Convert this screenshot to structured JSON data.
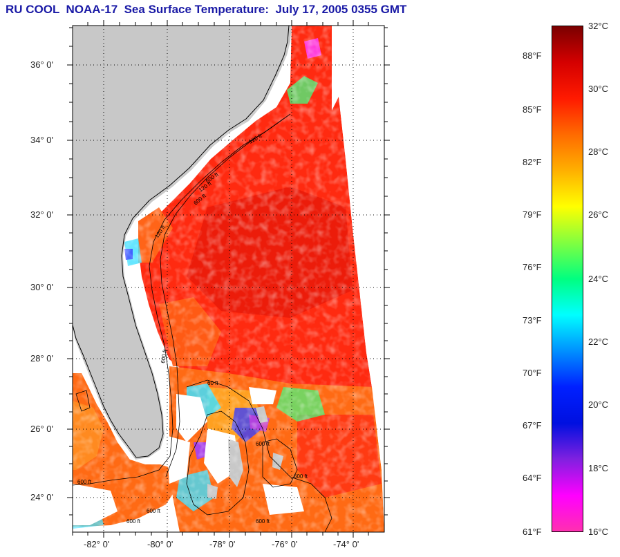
{
  "title": "RU COOL  NOAA-17  Sea Surface Temperature:  July 17, 2005 0355 GMT",
  "map": {
    "lat_labels": [
      "36° 0'",
      "34° 0'",
      "32° 0'",
      "30° 0'",
      "28° 0'",
      "26° 0'",
      "24° 0'"
    ],
    "lon_labels": [
      "-82° 0'",
      "-80° 0'",
      "-78° 0'",
      "-76° 0'",
      "-74° 0'"
    ],
    "isobath_labels": [
      "120 ft",
      "600 ft",
      "120 ft",
      "600 ft",
      "120 ft",
      "600 ft",
      "60 ft",
      "600 ft",
      "600 ft",
      "600 ft",
      "600 ft",
      "600 ft",
      "600 ft"
    ],
    "colors": {
      "land": "#c8c8c8",
      "ocean_warm": "#ff2a10",
      "ocean_hot": "#e81808",
      "ocean_mid": "#ff7a10",
      "cloud": "#ffffff"
    }
  },
  "colorbar": {
    "celsius_labels": [
      "32°C",
      "30°C",
      "28°C",
      "26°C",
      "24°C",
      "22°C",
      "20°C",
      "18°C",
      "16°C"
    ],
    "fahrenheit_labels": [
      "88°F",
      "85°F",
      "82°F",
      "79°F",
      "76°F",
      "73°F",
      "70°F",
      "67°F",
      "64°F",
      "61°F"
    ],
    "gradient": [
      "#7a0000",
      "#d40000",
      "#ff1a00",
      "#ff6a00",
      "#ffb000",
      "#ffff00",
      "#80ff40",
      "#00ff80",
      "#00ffff",
      "#0090ff",
      "#0020ff",
      "#0010e0",
      "#8020e0",
      "#ff00ff",
      "#ff30b0"
    ]
  }
}
